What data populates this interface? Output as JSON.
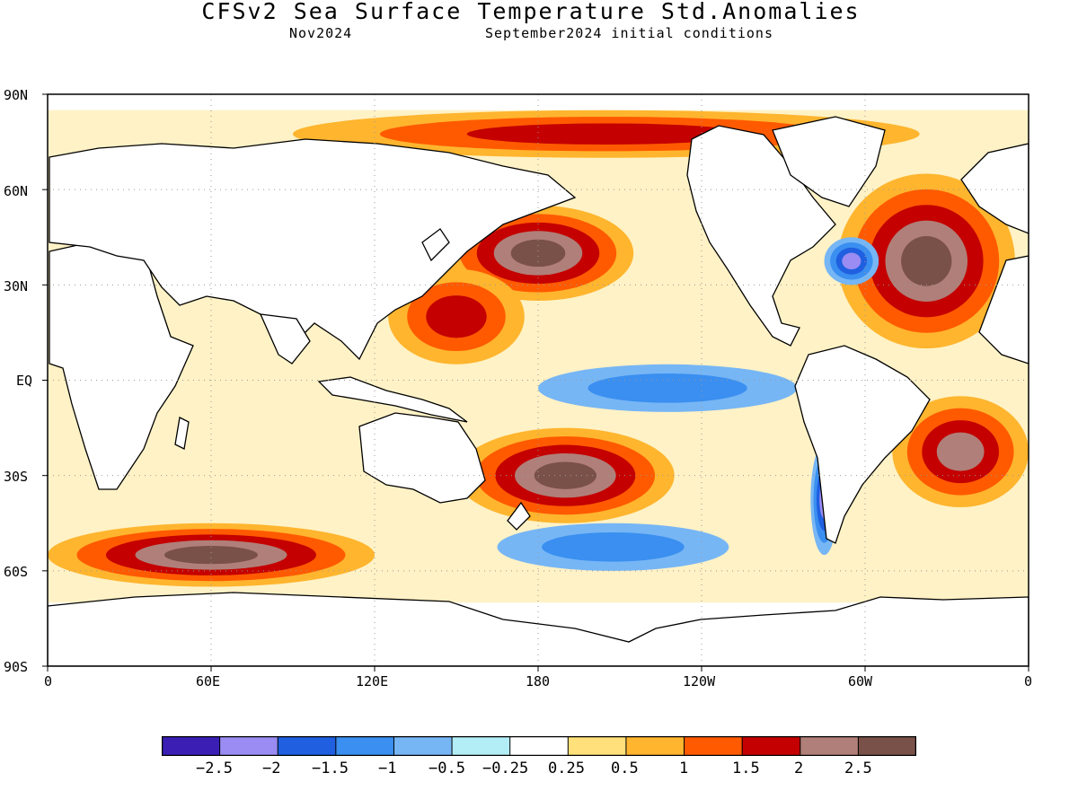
{
  "title": "CFSv2 Sea Surface Temperature Std.Anomalies",
  "subtitle_left": "Nov2024",
  "subtitle_right": "September2024 initial conditions",
  "map": {
    "projection": "cylindrical equidistant",
    "lon_range": [
      0,
      360
    ],
    "lat_range": [
      -90,
      90
    ],
    "grid": "dotted"
  },
  "lat_labels": [
    "90N",
    "60N",
    "30N",
    "EQ",
    "30S",
    "60S",
    "90S"
  ],
  "lon_labels": [
    "0",
    "60E",
    "120E",
    "180",
    "120W",
    "60W",
    "0"
  ],
  "colorbar": {
    "colors": [
      "#3b1fb5",
      "#9a8cf2",
      "#1f5fe0",
      "#3a8ff0",
      "#77b6f5",
      "#b3edf6",
      "#ffffff",
      "#ffe07a",
      "#ffb52e",
      "#ff5a00",
      "#c40000",
      "#b07f79",
      "#7a5148"
    ],
    "labels": [
      "-2.5",
      "-2",
      "-1.5",
      "-1",
      "-0.5",
      "-0.25",
      "0.25",
      "0.5",
      "1",
      "1.5",
      "2",
      "2.5"
    ]
  },
  "anomaly_regions": [
    {
      "desc": "NE Pacific warm blob",
      "lon": [
        145,
        215
      ],
      "lat": [
        25,
        55
      ],
      "level": 2.5
    },
    {
      "desc": "western Pacific warm",
      "lon": [
        125,
        175
      ],
      "lat": [
        5,
        35
      ],
      "level": 1.5
    },
    {
      "desc": "equatorial Pacific cool",
      "lon": [
        180,
        275
      ],
      "lat": [
        -10,
        5
      ],
      "level": -1.0
    },
    {
      "desc": "SW Pacific warm",
      "lon": [
        150,
        230
      ],
      "lat": [
        -45,
        -15
      ],
      "level": 2.5
    },
    {
      "desc": "North Atlantic warm",
      "lon": [
        290,
        355
      ],
      "lat": [
        10,
        65
      ],
      "level": 2.5
    },
    {
      "desc": "Gulf Stream cool",
      "lon": [
        285,
        305
      ],
      "lat": [
        30,
        45
      ],
      "level": -2.0
    },
    {
      "desc": "South Atlantic warm",
      "lon": [
        310,
        360
      ],
      "lat": [
        -40,
        -5
      ],
      "level": 2.0
    },
    {
      "desc": "Southern Ocean warm",
      "lon": [
        0,
        120
      ],
      "lat": [
        -65,
        -45
      ],
      "level": 2.5
    },
    {
      "desc": "Southern Ocean cool",
      "lon": [
        165,
        250
      ],
      "lat": [
        -60,
        -45
      ],
      "level": -1.0
    },
    {
      "desc": "Arctic warm",
      "lon": [
        90,
        320
      ],
      "lat": [
        70,
        85
      ],
      "level": 1.5
    },
    {
      "desc": "Chile coast cool",
      "lon": [
        280,
        290
      ],
      "lat": [
        -55,
        -20
      ],
      "level": -2.0
    }
  ]
}
